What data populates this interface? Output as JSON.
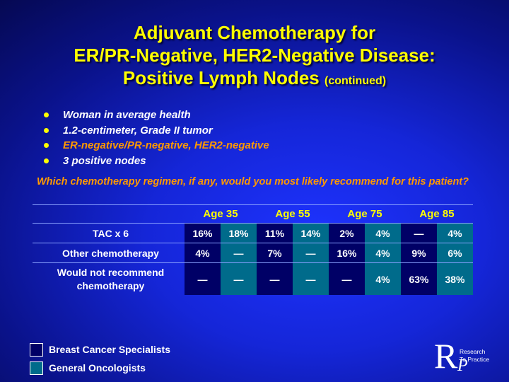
{
  "title": {
    "line1": "Adjuvant Chemotherapy for",
    "line2": "ER/PR-Negative, HER2-Negative Disease:",
    "line3_main": "Positive Lymph Nodes",
    "line3_small": "(continued)"
  },
  "bullets": [
    "Woman in average health",
    "1.2-centimeter, Grade II tumor",
    "ER-negative/PR-negative, HER2-negative",
    "3 positive nodes"
  ],
  "question": "Which chemotherapy regimen, if any, would you most likely recommend for this patient?",
  "table": {
    "age_headers": [
      "Age 35",
      "Age 55",
      "Age 75",
      "Age 85"
    ],
    "rows": [
      {
        "label": "TAC x 6",
        "values": [
          "16%",
          "18%",
          "11%",
          "14%",
          "2%",
          "4%",
          "—",
          "4%"
        ]
      },
      {
        "label": "Other chemotherapy",
        "values": [
          "4%",
          "—",
          "7%",
          "—",
          "16%",
          "4%",
          "9%",
          "6%"
        ]
      },
      {
        "label": "Would not recommend chemotherapy",
        "values": [
          "—",
          "—",
          "—",
          "—",
          "—",
          "4%",
          "63%",
          "38%"
        ]
      }
    ]
  },
  "legend": {
    "breast_cancer_specialists": "Breast Cancer Specialists",
    "general_oncologists": "General Oncologists"
  },
  "colors": {
    "title": "#ffff00",
    "highlight": "#ff9900",
    "specialists_cell": "#000066",
    "oncologists_cell": "#006b8b"
  },
  "logo": {
    "letter": "R",
    "sub_letter": "P",
    "line1": "Research",
    "line2": "To Practice"
  }
}
